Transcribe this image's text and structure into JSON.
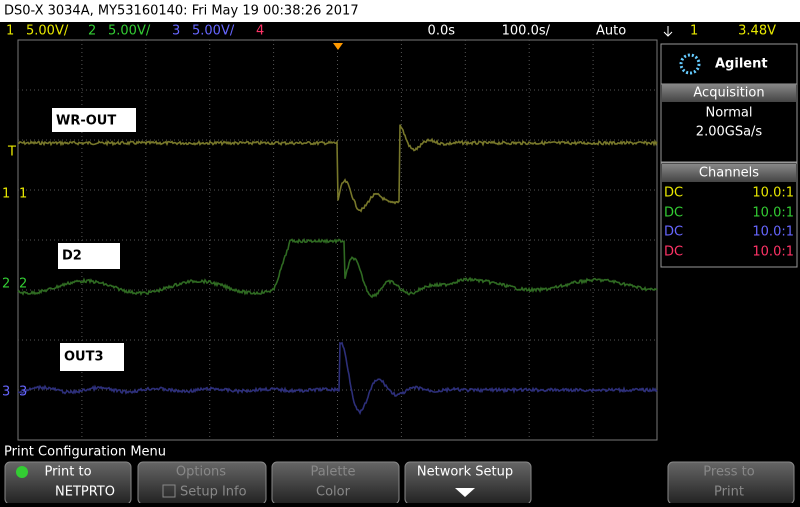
{
  "title_bar": "DS0-X 3034A, MY53160140: Fri May 19 00:38:26 2017",
  "status": {
    "channels": [
      {
        "number": "1",
        "scale": "5.00V/"
      },
      {
        "number": "2",
        "scale": "5.00V/"
      },
      {
        "number": "3",
        "scale": "5.00V/"
      },
      {
        "number": "4"
      }
    ],
    "delay": "0.0s",
    "timebase": "100.0s/",
    "trigger_mode": "Auto",
    "trigger_channel": "1",
    "trigger_level": "3.48V"
  },
  "waveform_labels": [
    "WR-OUT",
    "D2",
    "OUT3"
  ],
  "channel_markers": [
    "1",
    "2",
    "3"
  ],
  "trigger_marker": "T",
  "brand": "Agilent",
  "acquisition": {
    "header": "Acquisition",
    "mode": "Normal",
    "rate": "2.00GSa/s"
  },
  "channels_panel": {
    "header": "Channels",
    "rows": [
      {
        "coupling": "DC",
        "probe": "10.0:1"
      },
      {
        "coupling": "DC",
        "probe": "10.0:1"
      },
      {
        "coupling": "DC",
        "probe": "10.0:1"
      },
      {
        "coupling": "DC",
        "probe": "10.0:1"
      }
    ]
  },
  "menu_title": "Print Configuration Menu",
  "softkeys": [
    {
      "line1": "Print to",
      "line2": "NETPRTO"
    },
    {
      "line1": "Options",
      "line2": "Setup Info"
    },
    {
      "line1": "Palette",
      "line2": "Color"
    },
    {
      "line1": "Network Setup"
    },
    {
      "line1": "Press to",
      "line2": "Print"
    }
  ]
}
